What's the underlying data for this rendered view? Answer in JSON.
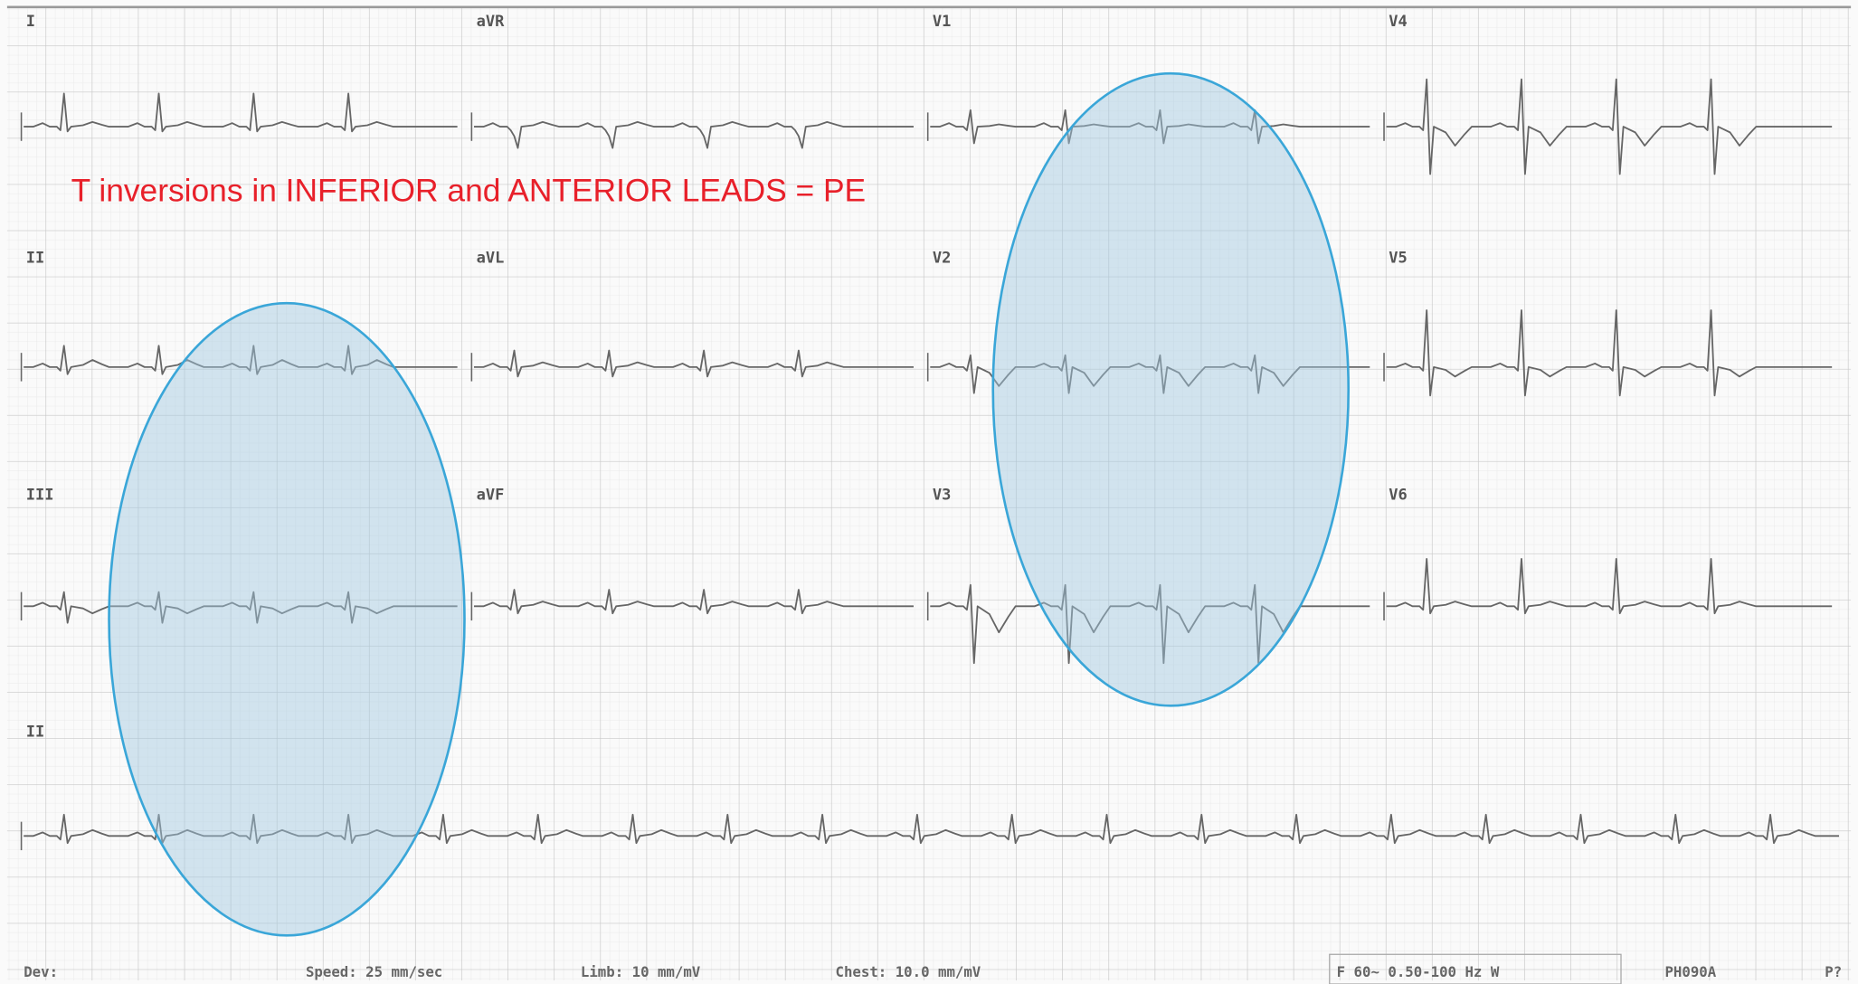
{
  "annotation": "T inversions in INFERIOR and ANTERIOR LEADS = PE",
  "leads": [
    [
      "I",
      "aVR",
      "V1",
      "V4"
    ],
    [
      "II",
      "aVL",
      "V2",
      "V5"
    ],
    [
      "III",
      "aVF",
      "V3",
      "V6"
    ],
    [
      "II"
    ]
  ],
  "footer": [
    "Dev:",
    "Speed: 25 mm/sec",
    "Limb: 10 mm/mV",
    "Chest: 10.0 mm/mV",
    "F 60~ 0.50-100 Hz W",
    "PH090A",
    "P?"
  ]
}
